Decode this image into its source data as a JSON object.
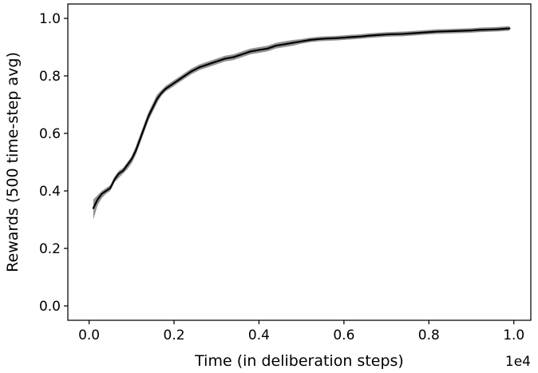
{
  "chart_data": {
    "type": "line",
    "title": "",
    "xlabel": "Time (in deliberation steps)",
    "ylabel": "Rewards (500 time-step avg)",
    "x_offset_label": "1e4",
    "xlim": [
      -0.05,
      1.04
    ],
    "ylim": [
      -0.05,
      1.05
    ],
    "x_ticks": [
      0.0,
      0.2,
      0.4,
      0.6,
      0.8,
      1.0
    ],
    "x_tick_labels": [
      "0.0",
      "0.2",
      "0.4",
      "0.6",
      "0.8",
      "1.0"
    ],
    "y_ticks": [
      0.0,
      0.2,
      0.4,
      0.6,
      0.8,
      1.0
    ],
    "y_tick_labels": [
      "0.0",
      "0.2",
      "0.4",
      "0.6",
      "0.8",
      "1.0"
    ],
    "grid": false,
    "series": [
      {
        "line_color": "#000000",
        "band_color": "#808080",
        "x": [
          0.01,
          0.02,
          0.03,
          0.04,
          0.05,
          0.06,
          0.07,
          0.08,
          0.09,
          0.1,
          0.11,
          0.12,
          0.13,
          0.14,
          0.15,
          0.16,
          0.17,
          0.18,
          0.19,
          0.2,
          0.22,
          0.24,
          0.26,
          0.28,
          0.3,
          0.32,
          0.34,
          0.36,
          0.38,
          0.4,
          0.42,
          0.44,
          0.46,
          0.48,
          0.5,
          0.52,
          0.54,
          0.56,
          0.58,
          0.6,
          0.62,
          0.64,
          0.66,
          0.68,
          0.7,
          0.72,
          0.74,
          0.76,
          0.78,
          0.8,
          0.82,
          0.84,
          0.86,
          0.88,
          0.9,
          0.92,
          0.94,
          0.96,
          0.99
        ],
        "y": [
          0.34,
          0.37,
          0.39,
          0.4,
          0.41,
          0.44,
          0.46,
          0.47,
          0.49,
          0.51,
          0.54,
          0.58,
          0.62,
          0.66,
          0.69,
          0.72,
          0.74,
          0.755,
          0.765,
          0.775,
          0.795,
          0.815,
          0.83,
          0.84,
          0.85,
          0.86,
          0.865,
          0.875,
          0.885,
          0.89,
          0.895,
          0.905,
          0.91,
          0.915,
          0.92,
          0.925,
          0.928,
          0.93,
          0.931,
          0.933,
          0.935,
          0.937,
          0.94,
          0.942,
          0.944,
          0.945,
          0.946,
          0.948,
          0.95,
          0.952,
          0.954,
          0.955,
          0.956,
          0.957,
          0.958,
          0.96,
          0.961,
          0.962,
          0.965
        ],
        "y_lower": [
          0.3,
          0.35,
          0.375,
          0.39,
          0.4,
          0.43,
          0.445,
          0.46,
          0.475,
          0.495,
          0.525,
          0.565,
          0.605,
          0.645,
          0.675,
          0.705,
          0.73,
          0.745,
          0.755,
          0.765,
          0.785,
          0.805,
          0.82,
          0.83,
          0.84,
          0.85,
          0.855,
          0.865,
          0.875,
          0.88,
          0.885,
          0.895,
          0.9,
          0.905,
          0.912,
          0.917,
          0.92,
          0.922,
          0.923,
          0.925,
          0.927,
          0.929,
          0.932,
          0.934,
          0.936,
          0.937,
          0.938,
          0.94,
          0.942,
          0.944,
          0.946,
          0.947,
          0.948,
          0.949,
          0.95,
          0.952,
          0.953,
          0.954,
          0.957
        ],
        "y_upper": [
          0.37,
          0.385,
          0.4,
          0.41,
          0.42,
          0.45,
          0.47,
          0.48,
          0.5,
          0.52,
          0.555,
          0.595,
          0.635,
          0.675,
          0.705,
          0.735,
          0.75,
          0.765,
          0.775,
          0.785,
          0.805,
          0.825,
          0.84,
          0.85,
          0.86,
          0.87,
          0.875,
          0.885,
          0.895,
          0.9,
          0.905,
          0.915,
          0.92,
          0.925,
          0.928,
          0.933,
          0.936,
          0.938,
          0.939,
          0.941,
          0.943,
          0.945,
          0.948,
          0.95,
          0.952,
          0.953,
          0.954,
          0.956,
          0.958,
          0.96,
          0.962,
          0.963,
          0.964,
          0.965,
          0.966,
          0.968,
          0.969,
          0.97,
          0.973
        ]
      }
    ]
  }
}
